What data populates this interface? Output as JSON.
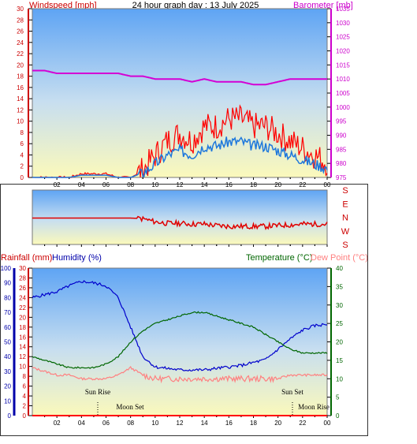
{
  "header": {
    "left": "Windspeed [mph]",
    "center": "24 hour graph day : 13 July 2025",
    "right": "Barometer [mb]"
  },
  "colors": {
    "wind": "#ff0000",
    "gust": "#ff0000",
    "avg_wind": "#1e78dc",
    "baro": "#d400d4",
    "temp": "#006600",
    "dew": "#ff8080",
    "hum": "#0000cc",
    "rain": "#ff0000",
    "axis_hum": "#0000aa",
    "axis_rain": "#cc0000",
    "axis_wind": "#cc0000",
    "axis_baro": "#cc00cc"
  },
  "x_ticks": [
    "02",
    "04",
    "06",
    "08",
    "10",
    "12",
    "14",
    "16",
    "18",
    "20",
    "22",
    "00"
  ],
  "wind_axis": {
    "ticks": [
      "0",
      "2",
      "4",
      "6",
      "8",
      "10",
      "12",
      "14",
      "16",
      "18",
      "20",
      "22",
      "24",
      "26",
      "28",
      "30"
    ]
  },
  "baro_axis": {
    "ticks": [
      "975",
      "980",
      "985",
      "990",
      "995",
      "1000",
      "1005",
      "1010",
      "1015",
      "1020",
      "1025",
      "1030",
      "1035"
    ]
  },
  "dir_axis": {
    "labels": [
      "S",
      "E",
      "N",
      "W",
      "S"
    ]
  },
  "lower_header": {
    "rain": "Rainfall (mm)",
    "hum": "Humidity (%)",
    "temp": "Temperature (°C)",
    "dew": "Dew Point (°C)"
  },
  "hum_axis": {
    "ticks": [
      "0",
      "10",
      "20",
      "30",
      "40",
      "50",
      "60",
      "70",
      "80",
      "90",
      "100"
    ]
  },
  "rain_axis": {
    "ticks": [
      "0",
      "2",
      "4",
      "6",
      "8",
      "10",
      "12",
      "14",
      "16",
      "18",
      "20",
      "22",
      "24",
      "26",
      "28",
      "30"
    ]
  },
  "temp_axis": {
    "ticks": [
      "0",
      "5",
      "10",
      "15",
      "20",
      "25",
      "30",
      "35",
      "40"
    ]
  },
  "annotations": {
    "sunrise": "Sun Rise",
    "moonset1": "Moon Set",
    "sunset": "Sun Set",
    "moonrise": "Moon Rise"
  },
  "chart_data": [
    {
      "type": "line",
      "title": "24 hour graph day : 13 July 2025",
      "xlabel": "",
      "x": [
        0,
        1,
        2,
        3,
        4,
        5,
        6,
        7,
        8,
        9,
        10,
        11,
        12,
        13,
        14,
        15,
        16,
        17,
        18,
        19,
        20,
        21,
        22,
        23,
        24
      ],
      "xlim": [
        0,
        24
      ],
      "series": [
        {
          "name": "Windspeed [mph]",
          "axis": "left",
          "ylim": [
            0,
            30
          ],
          "values": [
            0,
            0,
            0,
            0,
            0.5,
            0.5,
            0.5,
            0,
            0,
            1,
            3,
            5,
            6,
            5,
            7,
            7,
            8,
            8,
            7,
            7,
            6,
            5,
            4,
            3,
            2
          ]
        },
        {
          "name": "Barometer [mb]",
          "axis": "right",
          "ylim": [
            975,
            1035
          ],
          "values": [
            1013,
            1013,
            1012,
            1012,
            1012,
            1012,
            1012,
            1012,
            1011,
            1011,
            1010,
            1010,
            1010,
            1009,
            1010,
            1009,
            1009,
            1009,
            1008,
            1008,
            1009,
            1010,
            1010,
            1010,
            1010
          ]
        }
      ]
    },
    {
      "type": "line",
      "title": "",
      "x": [
        0,
        1,
        2,
        3,
        4,
        5,
        6,
        7,
        8,
        9,
        10,
        11,
        12,
        13,
        14,
        15,
        16,
        17,
        18,
        19,
        20,
        21,
        22,
        23,
        24
      ],
      "xlim": [
        0,
        24
      ],
      "series": [
        {
          "name": "Wind direction",
          "ylim": [
            0,
            360
          ],
          "values": [
            175,
            175,
            175,
            175,
            175,
            175,
            175,
            175,
            175,
            170,
            150,
            140,
            140,
            135,
            135,
            125,
            120,
            120,
            120,
            120,
            125,
            130,
            135,
            135,
            135
          ]
        }
      ]
    },
    {
      "type": "line",
      "title": "",
      "x": [
        0,
        1,
        2,
        3,
        4,
        5,
        6,
        7,
        8,
        9,
        10,
        11,
        12,
        13,
        14,
        15,
        16,
        17,
        18,
        19,
        20,
        21,
        22,
        23,
        24
      ],
      "xlim": [
        0,
        24
      ],
      "series": [
        {
          "name": "Humidity (%)",
          "axis": "hum",
          "ylim": [
            0,
            100
          ],
          "values": [
            80,
            82,
            84,
            88,
            91,
            90,
            88,
            80,
            60,
            40,
            33,
            32,
            31,
            31,
            31,
            32,
            33,
            34,
            36,
            38,
            45,
            52,
            58,
            61,
            62
          ]
        },
        {
          "name": "Temperature (°C)",
          "axis": "temp",
          "ylim": [
            0,
            40
          ],
          "values": [
            16,
            15,
            14,
            13,
            13,
            13,
            14,
            16,
            20,
            23,
            25,
            26,
            27,
            28,
            28,
            27,
            26,
            25,
            24,
            22,
            20,
            18,
            17,
            17,
            17
          ]
        },
        {
          "name": "Dew Point (°C)",
          "axis": "temp",
          "ylim": [
            0,
            40
          ],
          "values": [
            13,
            12,
            11,
            11,
            10,
            10,
            10,
            11,
            13,
            11,
            10,
            10,
            10,
            10,
            10,
            10,
            10,
            10,
            10,
            10,
            10,
            11,
            11,
            11,
            11
          ]
        },
        {
          "name": "Rainfall (mm)",
          "axis": "rain",
          "ylim": [
            0,
            30
          ],
          "values": [
            0,
            0,
            0,
            0,
            0,
            0,
            0,
            0,
            0,
            0,
            0,
            0,
            0,
            0,
            0,
            0,
            0,
            0,
            0,
            0,
            0,
            0,
            0,
            0,
            0
          ]
        }
      ]
    }
  ]
}
